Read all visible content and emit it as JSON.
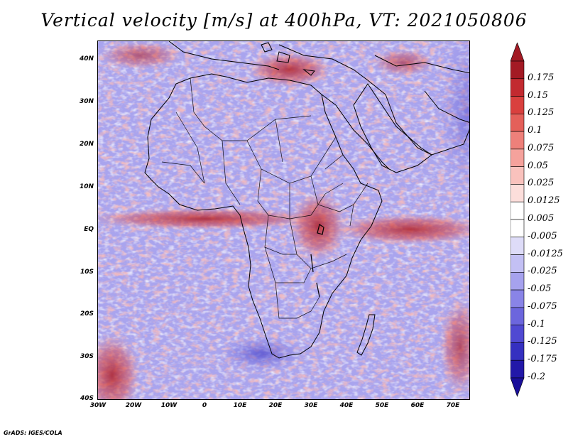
{
  "title": "Vertical velocity [m/s] at 400hPa, VT: 2021050806",
  "map": {
    "lat_ticks": [
      "40N",
      "30N",
      "20N",
      "10N",
      "EQ",
      "10S",
      "20S",
      "30S",
      "40S"
    ],
    "lon_ticks": [
      "30W",
      "20W",
      "10W",
      "0",
      "10E",
      "20E",
      "30E",
      "40E",
      "50E",
      "60E",
      "70E"
    ],
    "region": "Africa"
  },
  "colorbar": {
    "labels": [
      "0.175",
      "0.15",
      "0.125",
      "0.1",
      "0.075",
      "0.05",
      "0.025",
      "0.0125",
      "0.005",
      "-0.005",
      "-0.0125",
      "-0.025",
      "-0.05",
      "-0.075",
      "-0.1",
      "-0.125",
      "-0.175",
      "-0.2"
    ],
    "colors": [
      "#a31a24",
      "#c22a30",
      "#d9403e",
      "#e4605a",
      "#ee807a",
      "#f5a29c",
      "#f9c2bd",
      "#fcdedb",
      "#ffffff",
      "#ffffff",
      "#dedcf8",
      "#c3c0f4",
      "#a6a2ee",
      "#8984e7",
      "#6c66dd",
      "#5049d2",
      "#3530c0",
      "#2218a8"
    ]
  },
  "credit": "GrADS: IGES/COLA"
}
